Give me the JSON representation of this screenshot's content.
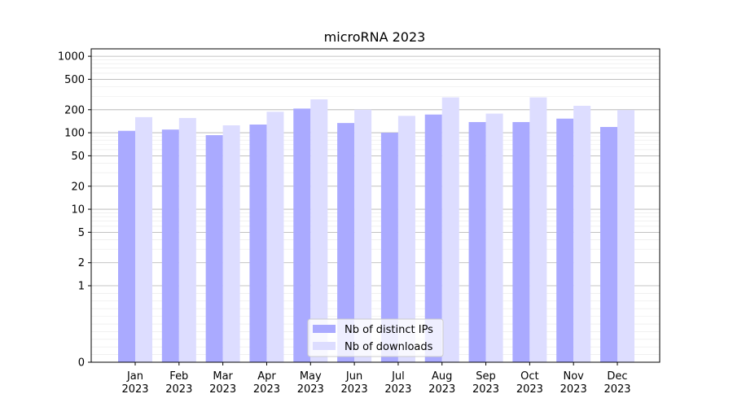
{
  "chart_data": {
    "type": "bar",
    "title": "microRNA 2023",
    "xlabel": "",
    "ylabel": "",
    "yscale": "symlog",
    "ylim": [
      0,
      1250
    ],
    "yticks": [
      0,
      1,
      2,
      5,
      10,
      20,
      50,
      100,
      200,
      500,
      1000
    ],
    "ytick_labels": [
      "0",
      "1",
      "2",
      "5",
      "10",
      "20",
      "50",
      "100",
      "200",
      "500",
      "1000"
    ],
    "categories": [
      "Jan\n2023",
      "Feb\n2023",
      "Mar\n2023",
      "Apr\n2023",
      "May\n2023",
      "Jun\n2023",
      "Jul\n2023",
      "Aug\n2023",
      "Sep\n2023",
      "Oct\n2023",
      "Nov\n2023",
      "Dec\n2023"
    ],
    "series": [
      {
        "name": "Nb of distinct IPs",
        "color": "#aaaaff",
        "values": [
          106,
          110,
          93,
          128,
          207,
          134,
          100,
          173,
          138,
          138,
          153,
          119
        ]
      },
      {
        "name": "Nb of downloads",
        "color": "#ddddff",
        "values": [
          160,
          156,
          125,
          188,
          273,
          200,
          166,
          290,
          178,
          290,
          225,
          198
        ]
      }
    ],
    "grid": true,
    "legend_position": "lower-center"
  }
}
